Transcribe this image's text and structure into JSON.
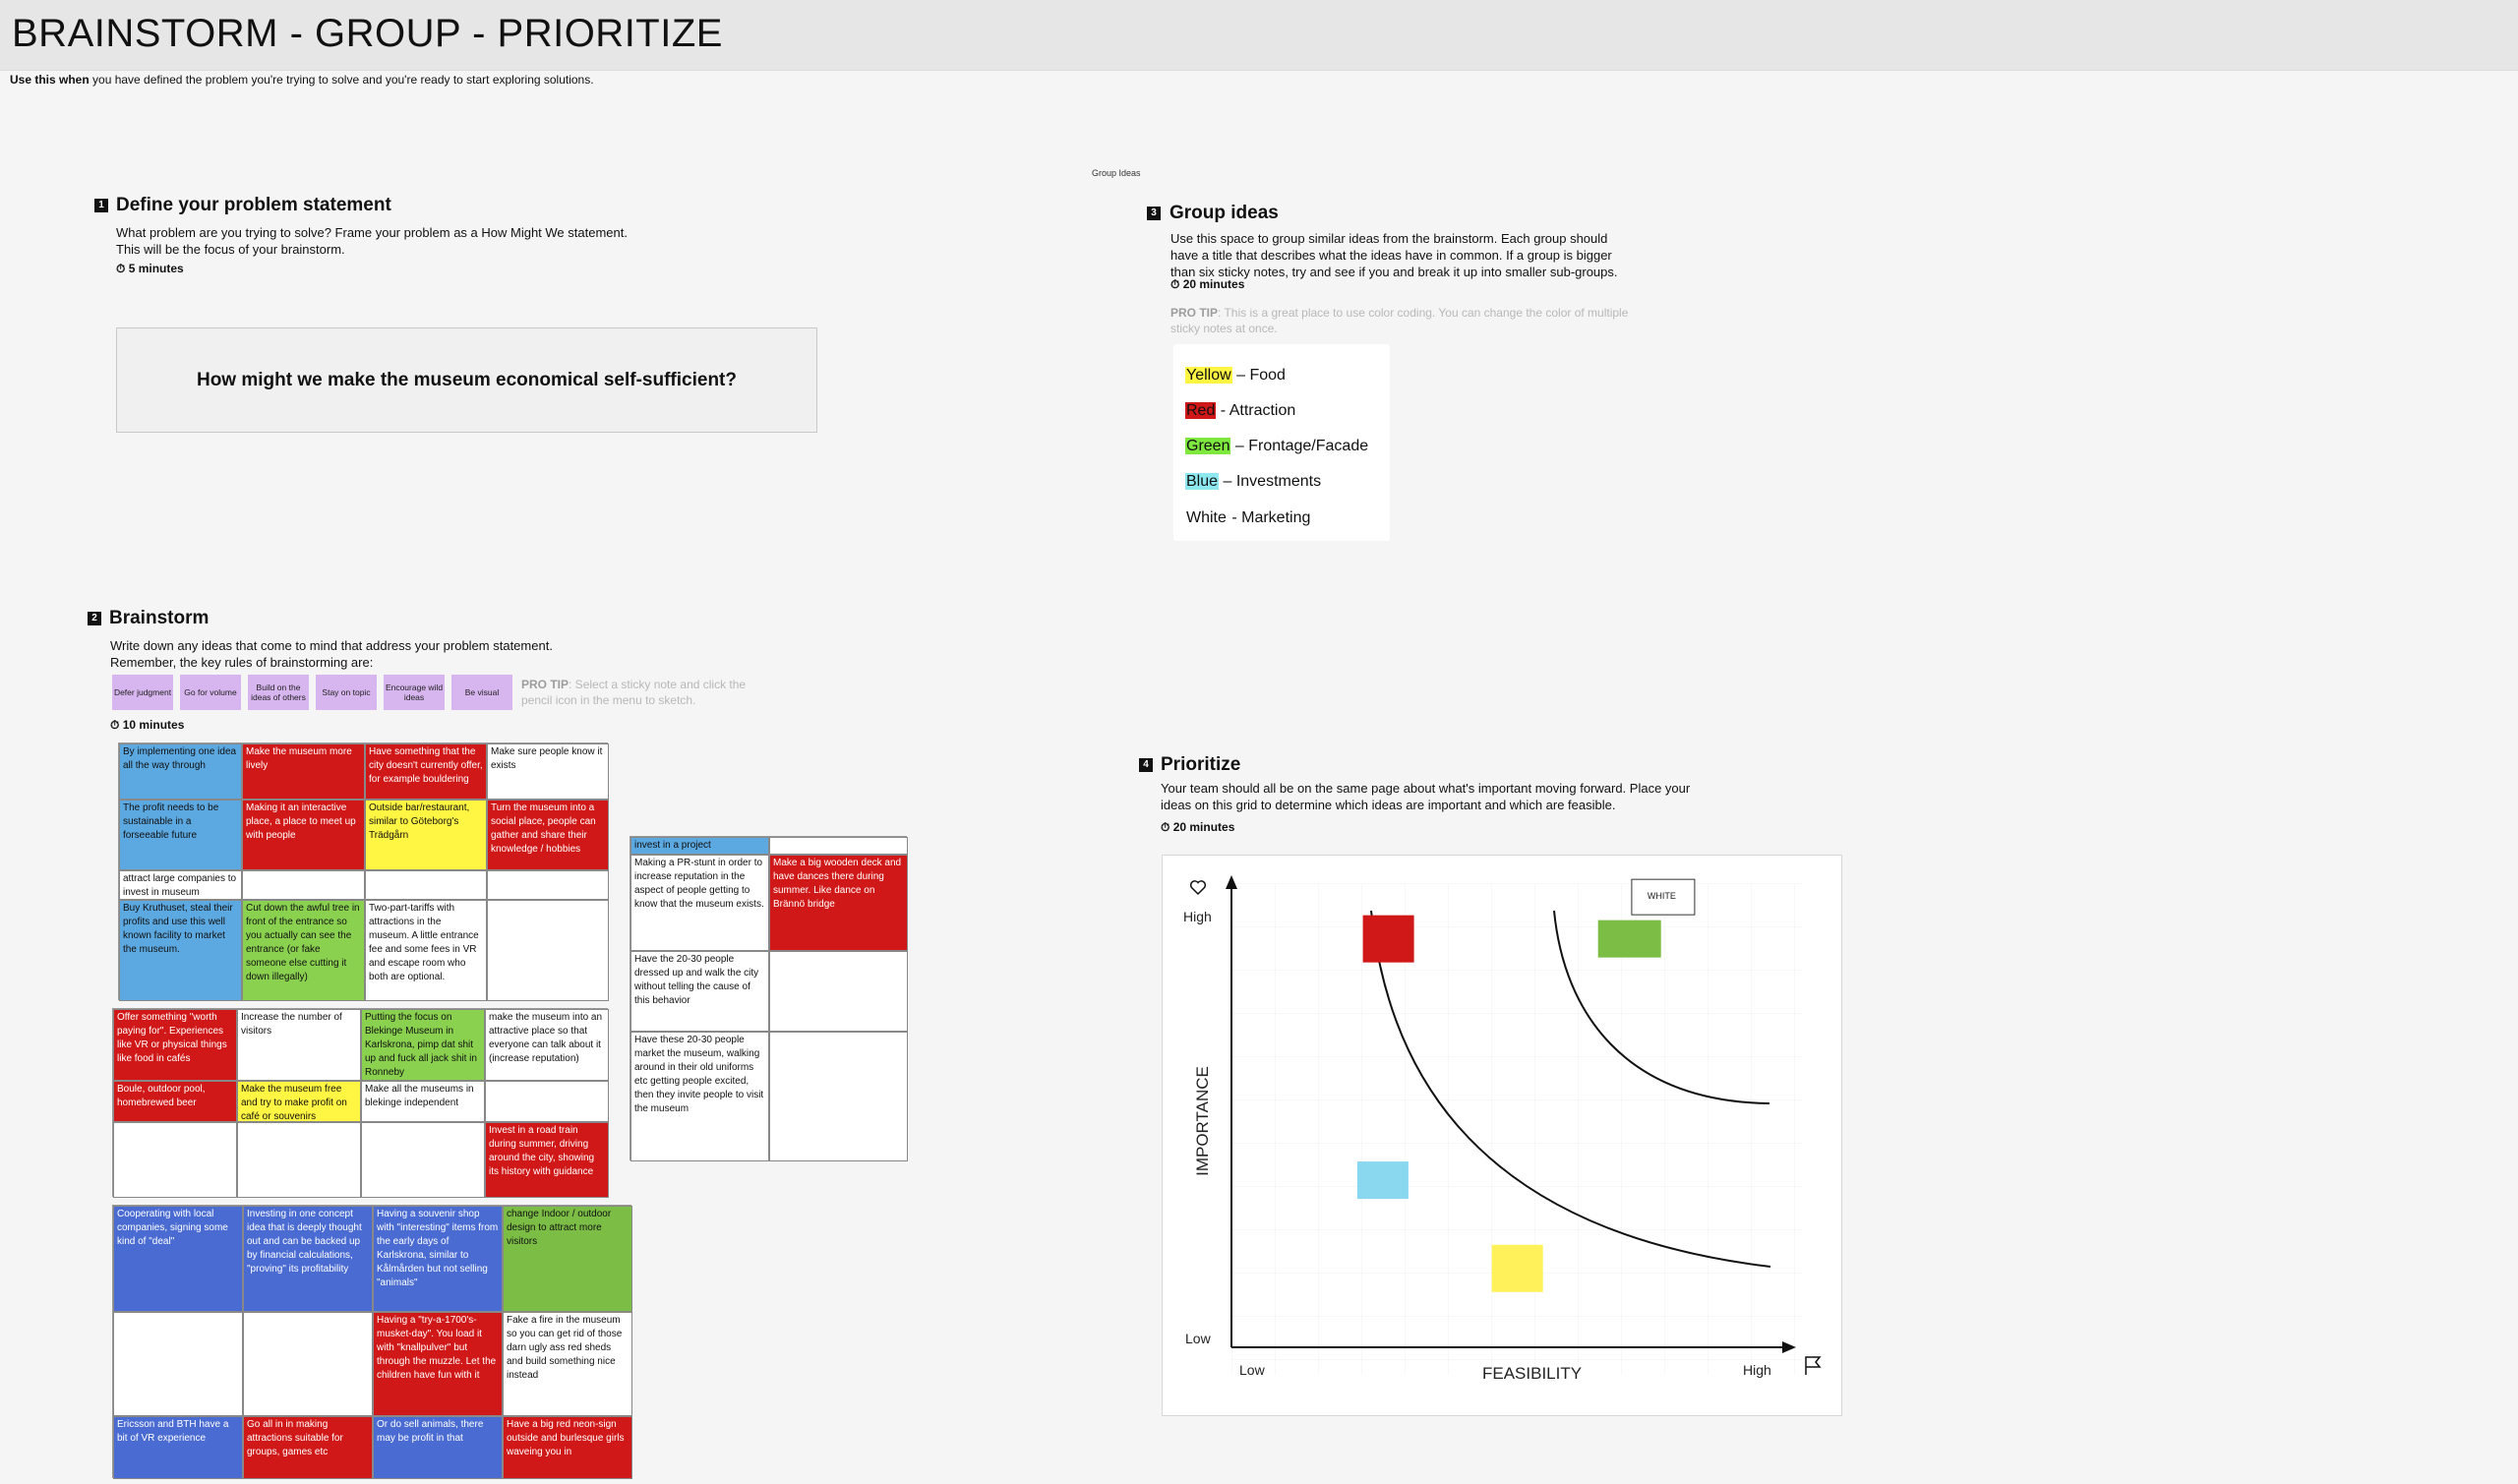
{
  "header": {
    "title": "BRAINSTORM - GROUP - PRIORITIZE",
    "use_when_bold": "Use this when",
    "use_when_rest": " you have defined the problem you're trying to solve and you're ready to start exploring solutions."
  },
  "step1": {
    "number": "1",
    "title": "Define your problem statement",
    "desc_line1": "What problem are you trying to solve? Frame your problem as a How Might We statement.",
    "desc_line2": "This will be the focus of your brainstorm.",
    "timer": "5 minutes",
    "statement": "How might we make the museum economical self-sufficient?"
  },
  "step2": {
    "number": "2",
    "title": "Brainstorm",
    "desc_line1": "Write down any ideas that come to mind that address your problem statement.",
    "desc_line2": "Remember, the key rules of brainstorming are:",
    "rules": [
      "Defer judgment",
      "Go for volume",
      "Build on the ideas of others",
      "Stay on topic",
      "Encourage wild ideas",
      "Be visual"
    ],
    "pro_tip_label": "PRO TIP",
    "pro_tip_text": ": Select a sticky note and click the pencil icon in the menu to sketch.",
    "timer": "10 minutes"
  },
  "grid_a": [
    {
      "c": "blue",
      "t": "By implementing one idea all the way through"
    },
    {
      "c": "red",
      "t": "Make the museum more lively"
    },
    {
      "c": "red",
      "t": "Have something that the city doesn't currently offer, for example bouldering"
    },
    {
      "c": "white",
      "t": "Make sure people know it exists"
    },
    {
      "c": "blue",
      "t": "The profit needs to be sustainable in a forseeable future"
    },
    {
      "c": "red",
      "t": "Making it an interactive place, a place to meet up with people"
    },
    {
      "c": "yellow",
      "t": "Outside bar/restaurant, similar to Göteborg's Trädgårn"
    },
    {
      "c": "red",
      "t": "Turn the museum into a social place, people can gather and share their knowledge / hobbies"
    },
    {
      "c": "white",
      "t": "attract large companies to invest in museum"
    },
    {
      "c": "white",
      "t": ""
    },
    {
      "c": "white",
      "t": ""
    },
    {
      "c": "white",
      "t": ""
    },
    {
      "c": "blue",
      "t": "Buy Kruthuset, steal their profits and use this well known facility to market the museum."
    },
    {
      "c": "green",
      "t": "Cut down the awful tree in front of the entrance so you actually can see the entrance (or fake someone else cutting it down illegally)"
    },
    {
      "c": "white",
      "t": "Two-part-tariffs with attractions in the museum. A little entrance fee and some fees in VR and escape room who both are optional."
    },
    {
      "c": "white",
      "t": ""
    }
  ],
  "grid_b": [
    {
      "c": "blue",
      "t": "invest in a project"
    },
    {
      "c": "white",
      "t": ""
    },
    {
      "c": "white",
      "t": "Making a PR-stunt in order to increase reputation in the aspect of people getting to know that the museum exists."
    },
    {
      "c": "red",
      "t": "Make a big wooden deck and have dances there during summer. Like dance on Brännö bridge"
    },
    {
      "c": "white",
      "t": "Have the 20-30 people dressed up and walk the city without telling the cause of this behavior"
    },
    {
      "c": "white",
      "t": ""
    },
    {
      "c": "white",
      "t": "Have these 20-30 people market the museum, walking around in their old uniforms etc getting people excited, then they invite people to visit the museum"
    },
    {
      "c": "white",
      "t": ""
    }
  ],
  "grid_c": [
    {
      "c": "red",
      "t": "Offer something \"worth paying for\". Experiences like VR or physical things like food in cafés"
    },
    {
      "c": "white",
      "t": "Increase the number of visitors"
    },
    {
      "c": "green",
      "t": "Putting the focus on Blekinge Museum in Karlskrona, pimp dat shit up and fuck all jack shit in Ronneby"
    },
    {
      "c": "white",
      "t": "make the museum into an attractive place so that everyone can talk about it (increase reputation)"
    },
    {
      "c": "red",
      "t": "Boule, outdoor pool, homebrewed beer"
    },
    {
      "c": "yellow",
      "t": "Make the museum free and try to make profit on café or souvenirs"
    },
    {
      "c": "white",
      "t": "Make all the museums in blekinge independent"
    },
    {
      "c": "white",
      "t": ""
    },
    {
      "c": "white",
      "t": ""
    },
    {
      "c": "white",
      "t": ""
    },
    {
      "c": "white",
      "t": ""
    },
    {
      "c": "red",
      "t": "Invest in a road train during summer, driving around the city, showing its history with guidance"
    }
  ],
  "grid_d": [
    {
      "c": "royal",
      "t": "Cooperating with local companies, signing some kind of \"deal\""
    },
    {
      "c": "royal",
      "t": "Investing in one concept idea that is deeply thought out and can be backed up by financial calculations, \"proving\" its profitability"
    },
    {
      "c": "royal",
      "t": "Having a souvenir shop with \"interesting\" items from the early days of Karlskrona, similar to Kålmården but not selling \"animals\""
    },
    {
      "c": "green2",
      "t": "change Indoor / outdoor design to attract more visitors"
    },
    {
      "c": "white",
      "t": ""
    },
    {
      "c": "white",
      "t": ""
    },
    {
      "c": "red",
      "t": "Having a \"try-a-1700's-musket-day\". You load it with \"knallpulver\" but through the muzzle. Let the children have fun with it"
    },
    {
      "c": "white",
      "t": "Fake a fire in the museum so you can get rid of those darn ugly ass red sheds and build something nice instead"
    },
    {
      "c": "royal",
      "t": "Ericsson and BTH have a bit of VR experience"
    },
    {
      "c": "red",
      "t": "Go all in in making attractions suitable for groups, games etc"
    },
    {
      "c": "royal",
      "t": "Or do sell animals, there may be profit in that"
    },
    {
      "c": "red",
      "t": "Have a big red neon-sign outside and burlesque girls waveing you in"
    }
  ],
  "step3": {
    "caption": "Group Ideas",
    "number": "3",
    "title": "Group ideas",
    "desc": "Use this space to group similar ideas from the brainstorm. Each group should have a title that describes what the ideas have in common. If a group is bigger than six sticky notes, try and see if you and break it up into smaller sub-groups.",
    "timer": "20 minutes",
    "pro_tip_label": "PRO TIP",
    "pro_tip_text": ": This is a great place to use color coding. You can change the color of multiple sticky notes at once.",
    "legend": [
      {
        "key": "Yellow",
        "rest": " – Food",
        "color": "#fff542"
      },
      {
        "key": "Red",
        "rest": " - Attraction",
        "color": "#d01818"
      },
      {
        "key": "Green",
        "rest": " – Frontage/Facade",
        "color": "#7ee83f"
      },
      {
        "key": "Blue",
        "rest": " – Investments",
        "color": "#8ee8f0"
      },
      {
        "key": "White",
        "rest": " - Marketing",
        "color": "#ffffff"
      }
    ]
  },
  "step4": {
    "number": "4",
    "title": "Prioritize",
    "desc": "Your team should all be on the same page about what's important moving forward. Place your ideas on this grid to determine which ideas are important and which are feasible.",
    "timer": "20 minutes",
    "y_axis": "IMPORTANCE",
    "x_axis": "FEASIBILITY",
    "y_high": "High",
    "y_low": "Low",
    "x_low": "Low",
    "x_high": "High",
    "white_label": "WHITE",
    "icons": {
      "heart": "heart-icon",
      "flag": "flag-icon",
      "timer": "timer-icon"
    },
    "notes": [
      {
        "color": "#d01818",
        "feasibility": 0.28,
        "importance": 0.88
      },
      {
        "color": "#7bbd45",
        "feasibility": 0.71,
        "importance": 0.88
      },
      {
        "color": "#ffffff",
        "feasibility": 0.77,
        "importance": 0.97
      },
      {
        "color": "#8ad7f0",
        "feasibility": 0.27,
        "importance": 0.36
      },
      {
        "color": "#fff15a",
        "feasibility": 0.51,
        "importance": 0.17
      }
    ]
  }
}
